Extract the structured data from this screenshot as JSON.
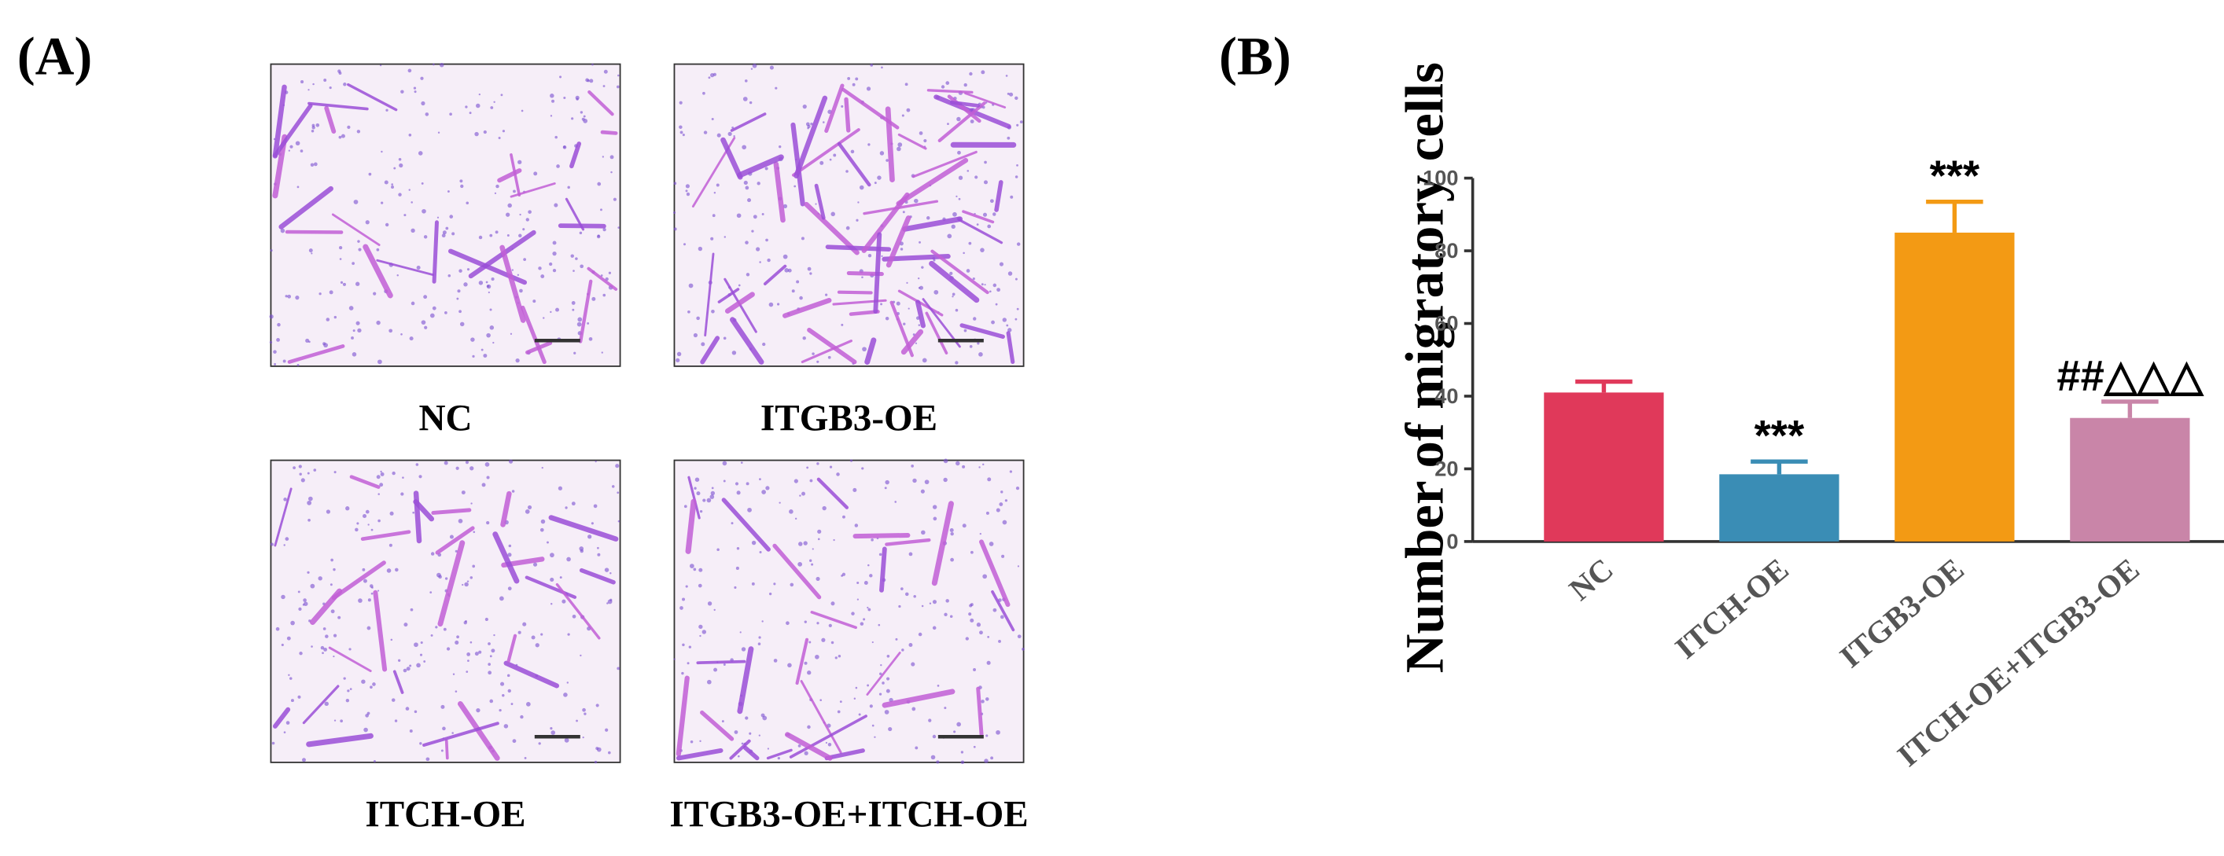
{
  "panel_a": {
    "label": "(A)",
    "images": [
      "NC",
      "ITGB3-OE",
      "ITCH-OE",
      "ITGB3-OE+ITCH-OE"
    ]
  },
  "chart_data": {
    "type": "bar",
    "panel_label": "(B)",
    "y_label": "Number of migratory cells",
    "categories": [
      "NC",
      "ITCH-OE",
      "ITGB3-OE",
      "ITCH-OE+ITGB3-OE"
    ],
    "values": [
      41,
      18.5,
      85,
      34
    ],
    "errors": [
      3,
      3.5,
      8.5,
      4.5
    ],
    "colors": [
      "#e0395a",
      "#3a8db5",
      "#f39a14",
      "#c985a8"
    ],
    "annotations": [
      null,
      "***",
      "***",
      "##△△△"
    ],
    "ylim": [
      0,
      100
    ],
    "yticks": [
      0,
      20,
      40,
      60,
      80,
      100
    ]
  }
}
